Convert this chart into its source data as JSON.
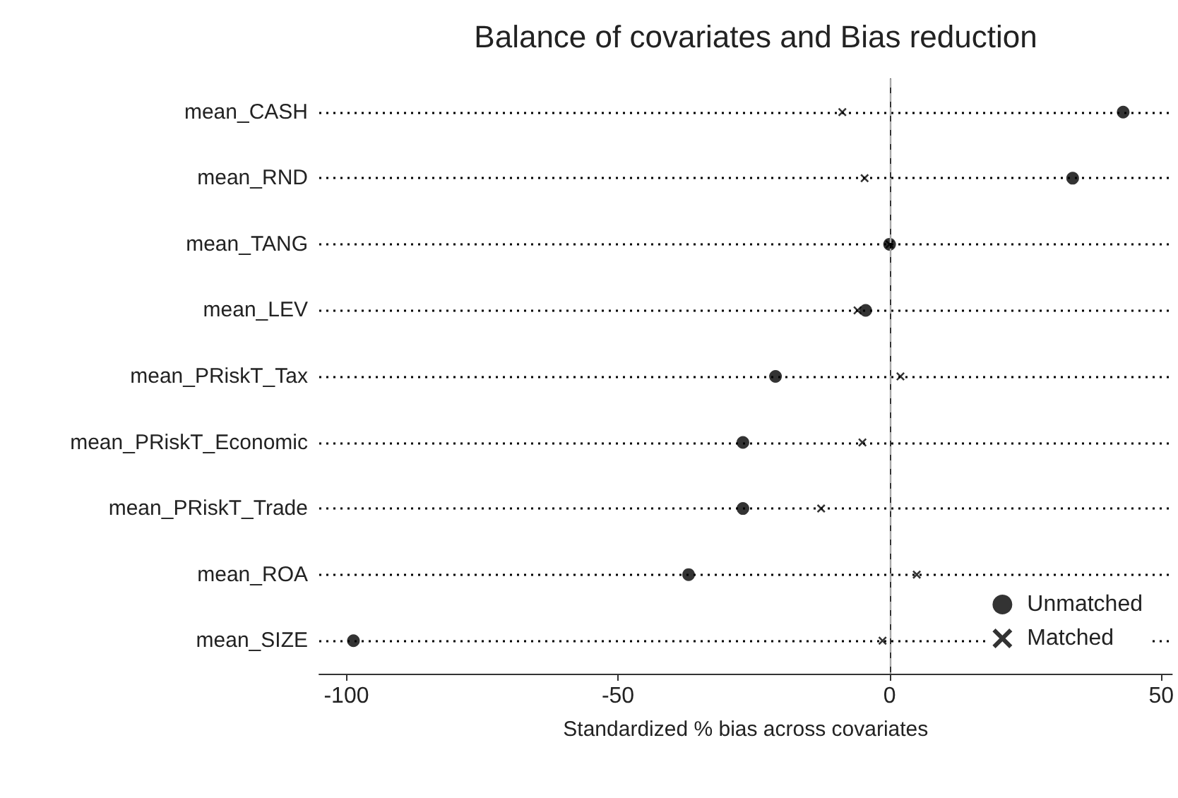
{
  "chart_data": {
    "type": "scatter",
    "title": "Balance of covariates and Bias reduction",
    "xlabel": "Standardized % bias across covariates",
    "categories": [
      "mean_CASH",
      "mean_RND",
      "mean_TANG",
      "mean_LEV",
      "mean_PRiskT_Tax",
      "mean_PRiskT_Economic",
      "mean_PRiskT_Trade",
      "mean_ROA",
      "mean_SIZE"
    ],
    "orientation": "horizontal",
    "series": [
      {
        "name": "Unmatched",
        "color": "#000000",
        "marker": "circle",
        "values": [
          43,
          33.7,
          0,
          -4.4,
          -21,
          -27,
          -27,
          -37,
          -98.7
        ]
      },
      {
        "name": "Matched",
        "color": "#000000",
        "marker": "cross",
        "values": [
          -8.7,
          -4.6,
          0,
          -5.9,
          2,
          -5,
          -12.6,
          5,
          -1.3
        ]
      }
    ],
    "xlim": [
      -105,
      52
    ],
    "xticks": [
      -100,
      -50,
      0,
      50
    ],
    "ref_lines": [
      {
        "axis": "x",
        "value": 0,
        "color": "#aaaaaa",
        "line_style": "dashed"
      }
    ],
    "grid": "y",
    "legend": "bottom right"
  }
}
